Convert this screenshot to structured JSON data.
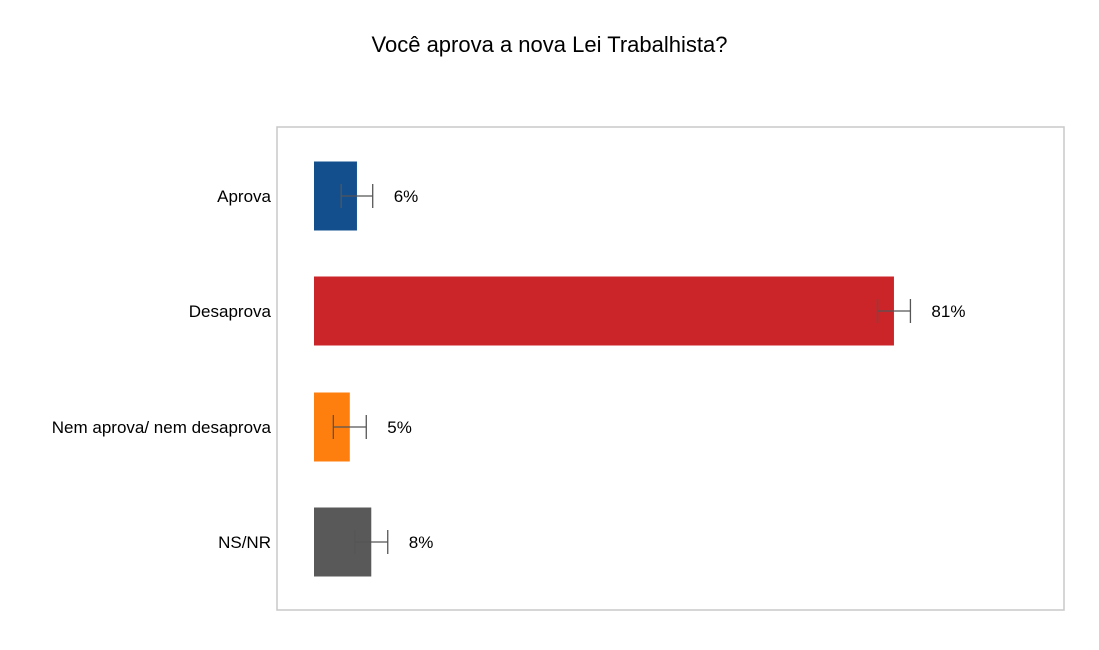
{
  "chart_data": {
    "type": "bar",
    "orientation": "horizontal",
    "title": "Você aprova a nova Lei Trabalhista?",
    "categories": [
      "Aprova",
      "Desaprova",
      "Nem aprova/ nem desaprova",
      "NS/NR"
    ],
    "values": [
      6,
      81,
      5,
      8
    ],
    "value_labels": [
      "6%",
      "81%",
      "5%",
      "8%"
    ],
    "error_bars": [
      [
        3.8,
        8.2
      ],
      [
        78.7,
        83.3
      ],
      [
        2.7,
        7.3
      ],
      [
        5.7,
        10.3
      ]
    ],
    "colors": [
      "#134f8c",
      "#cc2529",
      "#ff7f0e",
      "#595959"
    ],
    "xlim": [
      0,
      100
    ],
    "grid": false,
    "legend": "none"
  }
}
